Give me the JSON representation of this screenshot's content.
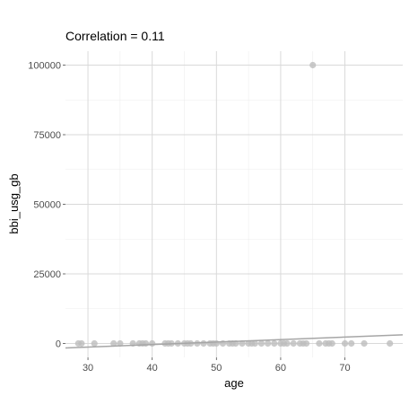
{
  "chart_data": {
    "type": "scatter",
    "title": "Correlation = 0.11",
    "xlabel": "age",
    "ylabel": "bbi_usg_gb",
    "xlim": [
      26.5,
      79
    ],
    "ylim": [
      -5000,
      105000
    ],
    "x_ticks": [
      30,
      40,
      50,
      60,
      70
    ],
    "y_ticks": [
      0,
      25000,
      50000,
      75000,
      100000
    ],
    "x_tick_labels": [
      "30",
      "40",
      "50",
      "60",
      "70"
    ],
    "y_tick_labels": [
      "0",
      "25000",
      "50000",
      "75000",
      "100000"
    ],
    "grid": true,
    "legend": "none",
    "point_color": "#bdbdbd",
    "line_color": "#a6a6a6",
    "points": [
      [
        28.5,
        0
      ],
      [
        29,
        0
      ],
      [
        31,
        0
      ],
      [
        34,
        0
      ],
      [
        35,
        0
      ],
      [
        37,
        0
      ],
      [
        38,
        0
      ],
      [
        38.5,
        0
      ],
      [
        39,
        0
      ],
      [
        40,
        0
      ],
      [
        42,
        0
      ],
      [
        42.5,
        0
      ],
      [
        43,
        0
      ],
      [
        44,
        0
      ],
      [
        45,
        0
      ],
      [
        45.5,
        0
      ],
      [
        46,
        0
      ],
      [
        47,
        0
      ],
      [
        48,
        0
      ],
      [
        49,
        0
      ],
      [
        49.5,
        0
      ],
      [
        50,
        0
      ],
      [
        51,
        0
      ],
      [
        52,
        0
      ],
      [
        52.5,
        0
      ],
      [
        53,
        0
      ],
      [
        54,
        0
      ],
      [
        55,
        0
      ],
      [
        55.5,
        0
      ],
      [
        56,
        0
      ],
      [
        57,
        0
      ],
      [
        58,
        0
      ],
      [
        59,
        0
      ],
      [
        60,
        0
      ],
      [
        60.5,
        0
      ],
      [
        61,
        0
      ],
      [
        62,
        0
      ],
      [
        63,
        0
      ],
      [
        63.5,
        0
      ],
      [
        64,
        0
      ],
      [
        65,
        100000
      ],
      [
        66,
        0
      ],
      [
        67,
        0
      ],
      [
        67.5,
        0
      ],
      [
        68,
        0
      ],
      [
        70,
        0
      ],
      [
        71,
        0
      ],
      [
        73,
        0
      ],
      [
        77,
        0
      ]
    ],
    "trend_line": {
      "x": [
        26.5,
        79
      ],
      "y": [
        -1600,
        3100
      ]
    }
  }
}
